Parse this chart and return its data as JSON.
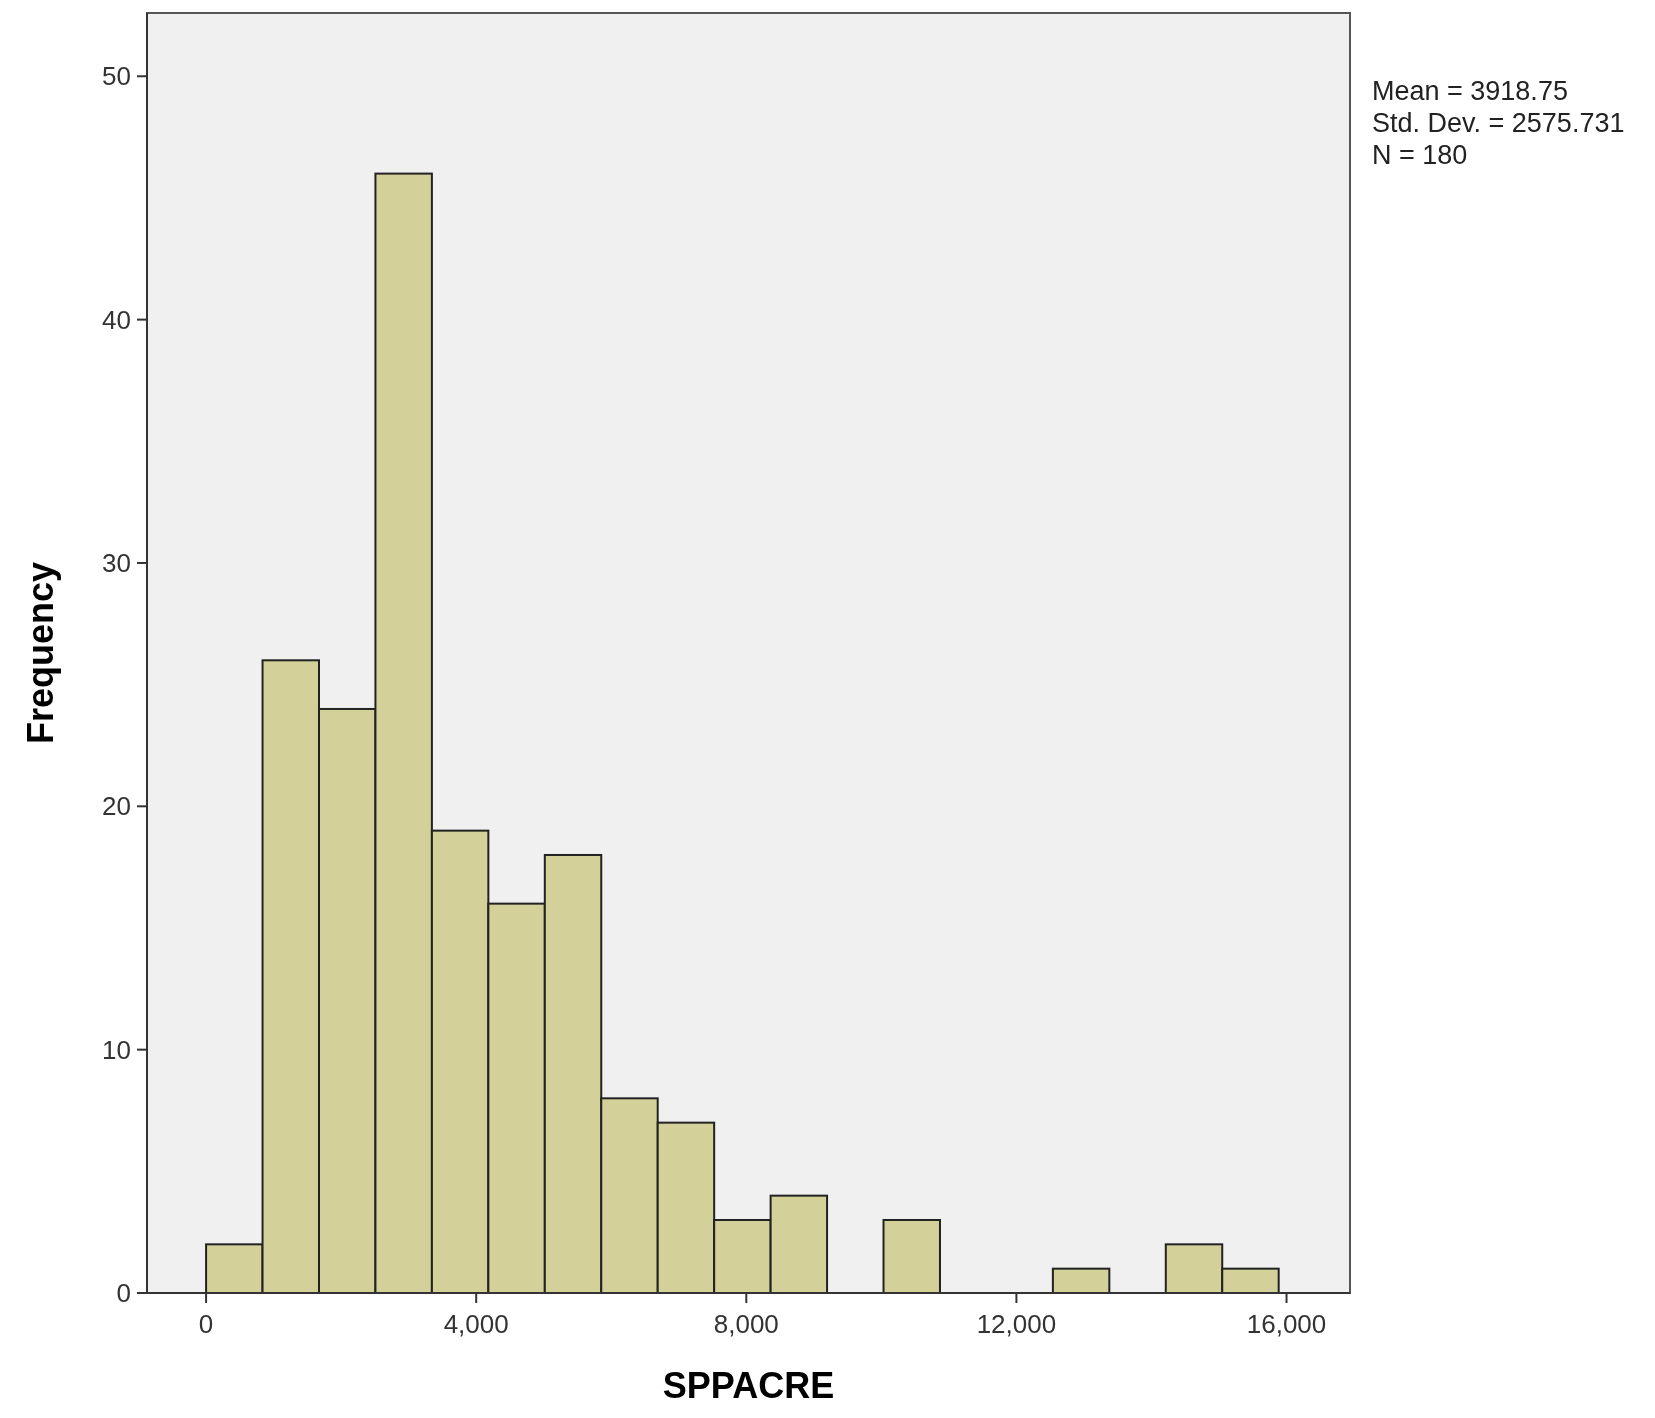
{
  "chart_data": {
    "type": "histogram",
    "xlabel": "SPPACRE",
    "ylabel": "Frequency",
    "bins": [
      0,
      836,
      1672,
      2508,
      3344,
      4180,
      5016,
      5852,
      6688,
      7524,
      8360,
      9196,
      10032,
      10868,
      11704,
      12540,
      13376,
      14212,
      15048,
      15884
    ],
    "values": [
      2,
      26,
      24,
      46,
      19,
      16,
      18,
      8,
      7,
      3,
      4,
      0,
      3,
      0,
      0,
      1,
      0,
      2,
      1
    ],
    "color": "#d3d09a",
    "xlim": [
      -875,
      16940
    ],
    "xticks": [
      {
        "value": 0,
        "label": "0"
      },
      {
        "value": 4000,
        "label": "4,000"
      },
      {
        "value": 8000,
        "label": "8,000"
      },
      {
        "value": 12000,
        "label": "12,000"
      },
      {
        "value": 16000,
        "label": "16,000"
      }
    ],
    "ylim": [
      0,
      52.6
    ],
    "yticks": [
      0,
      10,
      20,
      30,
      40,
      50
    ],
    "grid": false,
    "annotations": [
      "Mean = 3918.75",
      "Std. Dev. = 2575.731",
      "N = 180"
    ]
  }
}
